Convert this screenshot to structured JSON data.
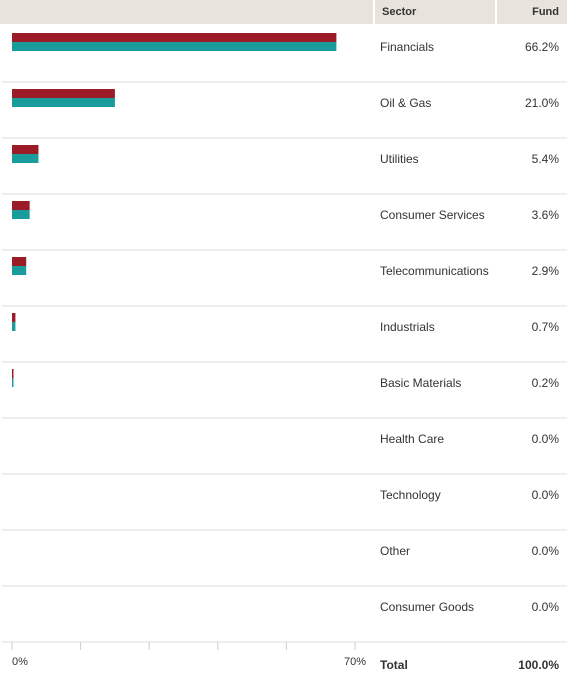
{
  "header": {
    "sector_label": "Sector",
    "fund_label": "Fund"
  },
  "footer": {
    "total_label": "Total",
    "total_value": "100.0%"
  },
  "colors": {
    "header_bg": "#e8e4dc",
    "bar_red": "#9b1b26",
    "bar_teal": "#1a9c9c",
    "divider": "#dddddd"
  },
  "chart_data": {
    "type": "bar",
    "orientation": "horizontal",
    "categories": [
      "Financials",
      "Oil & Gas",
      "Utilities",
      "Consumer Services",
      "Telecommunications",
      "Industrials",
      "Basic Materials",
      "Health Care",
      "Technology",
      "Other",
      "Consumer Goods"
    ],
    "value_labels": [
      "66.2%",
      "21.0%",
      "5.4%",
      "3.6%",
      "2.9%",
      "0.7%",
      "0.2%",
      "0.0%",
      "0.0%",
      "0.0%",
      "0.0%"
    ],
    "series": [
      {
        "color": "#9b1b26",
        "values": [
          66.2,
          21.0,
          5.4,
          3.6,
          2.9,
          0.7,
          0.2,
          0.0,
          0.0,
          0.0,
          0.0
        ]
      },
      {
        "color": "#1a9c9c",
        "values": [
          66.2,
          21.0,
          5.4,
          3.6,
          2.9,
          0.7,
          0.2,
          0.0,
          0.0,
          0.0,
          0.0
        ]
      }
    ],
    "xlim": [
      0,
      70
    ],
    "x_tick_labels": [
      "0%",
      "70%"
    ],
    "grid": false,
    "legend": "none"
  }
}
